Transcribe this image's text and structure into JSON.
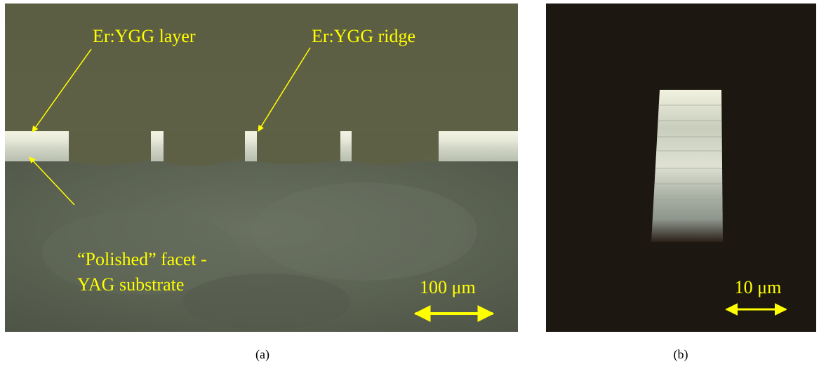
{
  "panels": [
    {
      "annotations": [
        "Er:YGG layer",
        "Er:YGG ridge",
        "“Polished” facet -",
        "YAG substrate"
      ],
      "scale_bar": "100 μm",
      "caption": "(a)"
    },
    {
      "scale_bar": "10 μm",
      "caption": "(b)"
    }
  ]
}
